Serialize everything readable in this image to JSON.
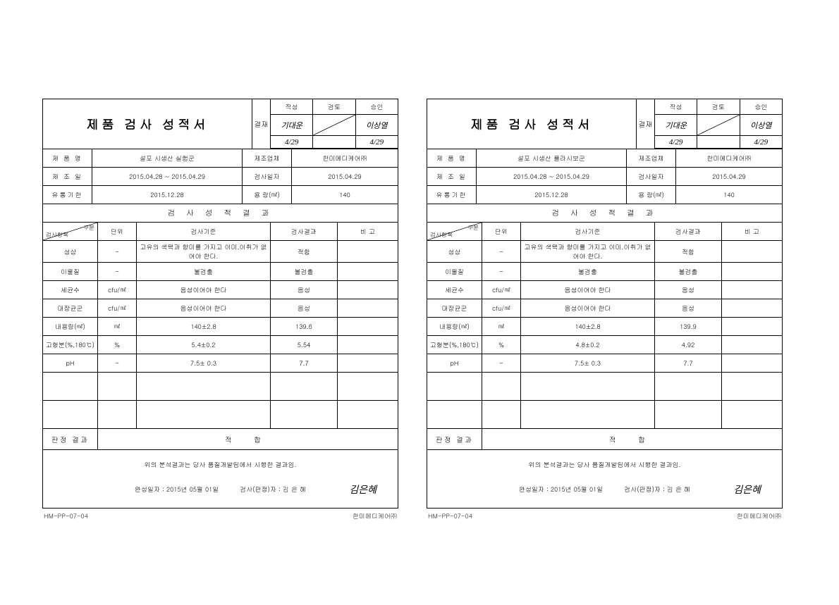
{
  "shared": {
    "title": "제품 검사 성적서",
    "jae": "결재",
    "approve_headers": [
      "작성",
      "검토",
      "승인"
    ],
    "approval_sigs_top": [
      "기대운",
      "",
      "이상열"
    ],
    "approval_dates": [
      "4/29",
      "",
      "4/29"
    ],
    "meta_labels": {
      "product": "제 품 명",
      "maker": "제조업체",
      "mfgdate": "제 조 일",
      "insdate": "검사일자",
      "expiry": "유통기한",
      "volume": "용 량(㎖)"
    },
    "section_header": "검 사 성 적 결 과",
    "thead": {
      "gubun": "구분",
      "hangmok": "검사항목",
      "unit": "단위",
      "criteria": "검사기준",
      "result": "검사결과",
      "note": "비 고"
    },
    "verdict_label": "판정 결과",
    "verdict_value": "적 합",
    "footnote": "위의 분석결과는 당사 품질개발팀에서 시행한 결과임.",
    "footer_date_label": "완성일자 : 2015년 05월 01일",
    "footer_inspector_label": "검사(판정)자 : 김 은 혜",
    "footer_sig": "김은혜",
    "doc_code": "HM-PP-07-04",
    "company": "한미메디케어㈜"
  },
  "left": {
    "meta": {
      "product": "설포 시생산 실험군",
      "maker": "한미메디케어㈜",
      "mfgdate": "2015.04.28 ~ 2015.04.29",
      "insdate": "2015.04.29",
      "expiry": "2015.12.28",
      "volume": "140"
    },
    "rows": [
      {
        "item": "성상",
        "unit": "-",
        "crit": "고유의 색택과 향미를 가지고 이미,이취가 없어야 한다.",
        "res": "적합",
        "note": ""
      },
      {
        "item": "이물질",
        "unit": "-",
        "crit": "불검출",
        "res": "불검출",
        "note": ""
      },
      {
        "item": "세균수",
        "unit": "cfu/㎖",
        "crit": "음성이어야 한다",
        "res": "음성",
        "note": ""
      },
      {
        "item": "대장균군",
        "unit": "cfu/㎖",
        "crit": "음성이어야 한다",
        "res": "음성",
        "note": ""
      },
      {
        "item": "내용량(㎖)",
        "unit": "㎖",
        "crit": "140±2.8",
        "res": "139.6",
        "note": ""
      },
      {
        "item": "고형분(%,180℃)",
        "unit": "%",
        "crit": "5.4±0.2",
        "res": "5.54",
        "note": ""
      },
      {
        "item": "pH",
        "unit": "-",
        "crit": "7.5± 0.3",
        "res": "7.7",
        "note": ""
      }
    ]
  },
  "right": {
    "meta": {
      "product": "설포 시생산 플라시보군",
      "maker": "한미메디케어㈜",
      "mfgdate": "2015.04.28 ~ 2015.04.29",
      "insdate": "2015.04.29",
      "expiry": "2015.12.28",
      "volume": "140"
    },
    "rows": [
      {
        "item": "성상",
        "unit": "-",
        "crit": "고유의 색택과 향미를 가지고 이미,이취가 없어야 한다.",
        "res": "적합",
        "note": ""
      },
      {
        "item": "이물질",
        "unit": "-",
        "crit": "불검출",
        "res": "불검출",
        "note": ""
      },
      {
        "item": "세균수",
        "unit": "cfu/㎖",
        "crit": "음성이어야 한다",
        "res": "음성",
        "note": ""
      },
      {
        "item": "대장균군",
        "unit": "cfu/㎖",
        "crit": "음성이어야 한다",
        "res": "음성",
        "note": ""
      },
      {
        "item": "내용량(㎖)",
        "unit": "㎖",
        "crit": "140±2.8",
        "res": "139.9",
        "note": ""
      },
      {
        "item": "고형분(%,180℃)",
        "unit": "%",
        "crit": "4.8±0.2",
        "res": "4.92",
        "note": ""
      },
      {
        "item": "pH",
        "unit": "-",
        "crit": "7.5± 0.3",
        "res": "7.7",
        "note": ""
      }
    ]
  }
}
